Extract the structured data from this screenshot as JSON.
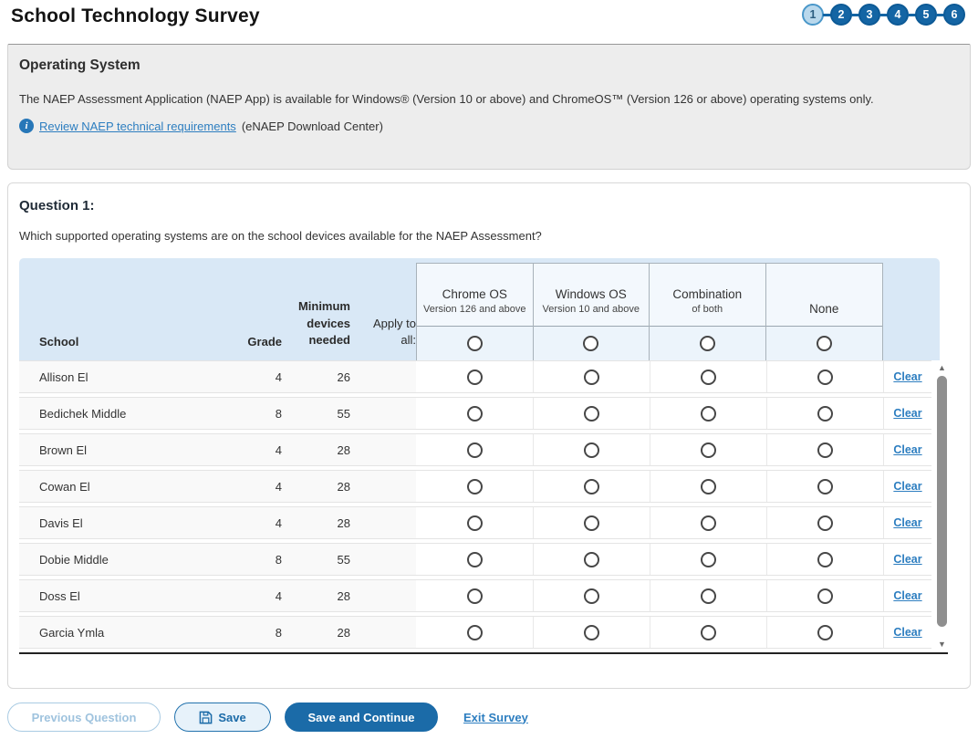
{
  "page": {
    "title": "School Technology Survey"
  },
  "pagination": {
    "steps": [
      "1",
      "2",
      "3",
      "4",
      "5",
      "6"
    ],
    "active": "1"
  },
  "info_panel": {
    "heading": "Operating System",
    "body": "The NAEP Assessment Application (NAEP App) is available for Windows® (Version 10 or above) and ChromeOS™ (Version 126 or above) operating systems only.",
    "link": "Review NAEP technical requirements",
    "link_suffix": "(eNAEP Download Center)"
  },
  "question": {
    "heading": "Question 1:",
    "text": "Which supported operating systems are on the school devices available for the NAEP Assessment?"
  },
  "table": {
    "headers": {
      "school": "School",
      "grade": "Grade",
      "min_devices": "Minimum devices needed",
      "apply": "Apply to all:"
    },
    "options": [
      {
        "title": "Chrome OS",
        "subtitle": "Version 126 and above"
      },
      {
        "title": "Windows OS",
        "subtitle": "Version 10 and above"
      },
      {
        "title": "Combination",
        "subtitle": "of both"
      },
      {
        "title": "None",
        "subtitle": ""
      }
    ],
    "clear_label": "Clear",
    "rows": [
      {
        "school": "Allison El",
        "grade": "4",
        "devices": "26"
      },
      {
        "school": "Bedichek Middle",
        "grade": "8",
        "devices": "55"
      },
      {
        "school": "Brown El",
        "grade": "4",
        "devices": "28"
      },
      {
        "school": "Cowan El",
        "grade": "4",
        "devices": "28"
      },
      {
        "school": "Davis El",
        "grade": "4",
        "devices": "28"
      },
      {
        "school": "Dobie Middle",
        "grade": "8",
        "devices": "55"
      },
      {
        "school": "Doss El",
        "grade": "4",
        "devices": "28"
      },
      {
        "school": "Garcia Ymla",
        "grade": "8",
        "devices": "28"
      }
    ]
  },
  "footer": {
    "previous": "Previous Question",
    "save": "Save",
    "save_continue": "Save and Continue",
    "exit": "Exit Survey"
  },
  "colors": {
    "primary_blue": "#1b6ba8",
    "step_blue": "#1465a4",
    "link_blue": "#2d7ec0",
    "table_header_bg": "#d9e8f6",
    "option_box_bg": "#f3f8fd",
    "apply_row_bg": "#ecf4fb",
    "row_bg": "#f9f9f9",
    "panel_bg": "#ededed"
  }
}
